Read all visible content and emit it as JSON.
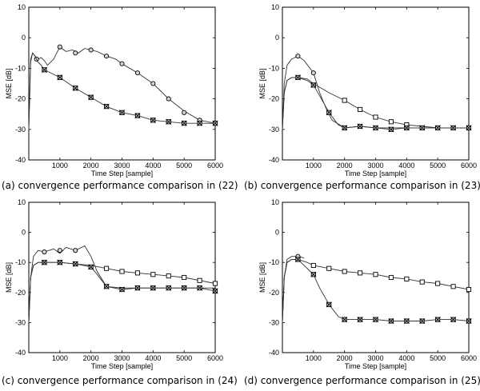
{
  "chart_data": [
    {
      "type": "line",
      "caption": "(a) convergence performance comparison in (22)",
      "xlabel": "Time Step [sample]",
      "ylabel": "MSE [dB]",
      "xlim": [
        0,
        6000
      ],
      "ylim": [
        -40,
        10
      ],
      "xticks": [
        "1000",
        "2000",
        "3000",
        "4000",
        "5000",
        "6000"
      ],
      "yticks": [
        "10",
        "0",
        "-10",
        "-20",
        "-30",
        "-40"
      ],
      "series": [
        {
          "name": "circle",
          "marker": "circle",
          "x": [
            0,
            60,
            120,
            200,
            300,
            400,
            500,
            600,
            700,
            800,
            900,
            1000,
            1200,
            1400,
            1600,
            1800,
            2000,
            2200,
            2500,
            2800,
            3000,
            3500,
            4000,
            4500,
            5000,
            5500,
            6000
          ],
          "y": [
            -30,
            -8,
            -5,
            -6,
            -7,
            -6.5,
            -7.5,
            -9,
            -8,
            -7,
            -5,
            -3,
            -4.5,
            -4,
            -5,
            -3.5,
            -4,
            -4.5,
            -6,
            -7,
            -8.5,
            -11.5,
            -15,
            -20,
            -24,
            -27,
            -28
          ],
          "marker_x": [
            250,
            1000,
            1500,
            2000,
            2500,
            3000,
            3500,
            4000,
            4500,
            5000,
            5500,
            6000
          ],
          "marker_y": [
            -7,
            -3,
            -5,
            -4,
            -6,
            -8.5,
            -11.5,
            -15,
            -20,
            -24.5,
            -27,
            -28
          ]
        },
        {
          "name": "x-square",
          "marker": "xsquare",
          "x": [
            0,
            60,
            120,
            200,
            300,
            400,
            500,
            800,
            1000,
            1500,
            2000,
            2500,
            3000,
            3500,
            4000,
            4500,
            5000,
            5500,
            6000
          ],
          "y": [
            -30,
            -7,
            -5,
            -6,
            -8,
            -9,
            -10.5,
            -12,
            -13,
            -16.5,
            -19.5,
            -22.5,
            -24.5,
            -25.5,
            -27,
            -27.5,
            -28,
            -28,
            -28
          ],
          "marker_x": [
            500,
            1000,
            1500,
            2000,
            2500,
            3000,
            3500,
            4000,
            4500,
            5000,
            5500,
            6000
          ],
          "marker_y": [
            -10.5,
            -13,
            -16.5,
            -19.5,
            -22.5,
            -24.5,
            -25.5,
            -27,
            -27.5,
            -28,
            -28,
            -28
          ]
        }
      ]
    },
    {
      "type": "line",
      "caption": "(b) convergence performance comparison in (23)",
      "xlabel": "Time Step [sample]",
      "ylabel": "MSE [dB]",
      "xlim": [
        0,
        6000
      ],
      "ylim": [
        -40,
        10
      ],
      "xticks": [
        "1000",
        "2000",
        "3000",
        "4000",
        "5000",
        "6000"
      ],
      "yticks": [
        "10",
        "0",
        "-10",
        "-20",
        "-30",
        "-40"
      ],
      "series": [
        {
          "name": "circle",
          "marker": "circle",
          "x": [
            0,
            60,
            150,
            300,
            500,
            700,
            1000,
            1200,
            1400,
            1600,
            2000,
            2500,
            3000,
            3500,
            4000,
            4500,
            5000,
            5500,
            6000
          ],
          "y": [
            -30,
            -15,
            -9,
            -7,
            -6,
            -7.5,
            -11.5,
            -18,
            -23,
            -27,
            -29.5,
            -29,
            -29.5,
            -29.5,
            -29.5,
            -29.5,
            -29.5,
            -29.5,
            -29.5
          ],
          "marker_x": [
            500,
            1000
          ],
          "marker_y": [
            -6,
            -11.5
          ]
        },
        {
          "name": "square",
          "marker": "square",
          "x": [
            0,
            60,
            150,
            300,
            500,
            800,
            1000,
            1500,
            2000,
            2500,
            3000,
            3500,
            4000,
            4500,
            5000,
            5500,
            6000
          ],
          "y": [
            -30,
            -18,
            -14,
            -13,
            -13,
            -13.5,
            -15,
            -18,
            -20.5,
            -23.5,
            -26,
            -27.5,
            -28.5,
            -29,
            -29.5,
            -29.5,
            -29.5
          ],
          "marker_x": [
            2000,
            2500,
            3000,
            3500,
            4000
          ],
          "marker_y": [
            -20.5,
            -23.5,
            -26,
            -27.5,
            -28.5
          ]
        },
        {
          "name": "x-square",
          "marker": "xsquare",
          "x": [
            0,
            60,
            150,
            300,
            500,
            800,
            1000,
            1200,
            1500,
            1800,
            2000,
            2500,
            3000,
            3500,
            4000,
            4500,
            5000,
            5500,
            6000
          ],
          "y": [
            -30,
            -18,
            -14,
            -13,
            -13,
            -14,
            -15.5,
            -19,
            -24.5,
            -28.5,
            -29.5,
            -29,
            -29.5,
            -30,
            -29.5,
            -29.5,
            -29.5,
            -29.5,
            -29.5
          ],
          "marker_x": [
            500,
            1000,
            1500,
            2000,
            2500,
            3000,
            3500,
            4000,
            4500,
            5000,
            5500,
            6000
          ],
          "marker_y": [
            -13,
            -15.5,
            -24.5,
            -29.5,
            -29,
            -29.5,
            -30,
            -29.5,
            -29.5,
            -29.5,
            -29.5,
            -29.5
          ]
        }
      ]
    },
    {
      "type": "line",
      "caption": "(c) convergence performance comparison in (24)",
      "xlabel": "Time Step [sample]",
      "ylabel": "MSE [dB]",
      "xlim": [
        0,
        6000
      ],
      "ylim": [
        -40,
        10
      ],
      "xticks": [
        "1000",
        "2000",
        "3000",
        "4000",
        "5000",
        "6000"
      ],
      "yticks": [
        "10",
        "0",
        "-10",
        "-20",
        "-30",
        "-40"
      ],
      "series": [
        {
          "name": "circle",
          "marker": "circle",
          "x": [
            0,
            60,
            150,
            300,
            500,
            800,
            1000,
            1200,
            1500,
            1800,
            2000,
            2200,
            2500,
            3000,
            4000,
            5000,
            6000
          ],
          "y": [
            -30,
            -15,
            -8,
            -6,
            -6.5,
            -5.5,
            -7,
            -5,
            -6,
            -4.5,
            -8,
            -13,
            -18,
            -18.5,
            -18.5,
            -18.5,
            -18.5
          ],
          "marker_x": [
            500,
            1000,
            1500
          ],
          "marker_y": [
            -6.5,
            -6,
            -6
          ]
        },
        {
          "name": "square",
          "marker": "square",
          "x": [
            0,
            60,
            150,
            300,
            500,
            1000,
            1500,
            2000,
            2500,
            3000,
            3500,
            4000,
            4500,
            5000,
            5500,
            6000
          ],
          "y": [
            -30,
            -15,
            -11,
            -10,
            -10,
            -10,
            -10.5,
            -11,
            -12,
            -13,
            -13.5,
            -14,
            -14.5,
            -15,
            -16,
            -17
          ],
          "marker_x": [
            2500,
            3000,
            3500,
            4000,
            4500,
            5000,
            5500,
            6000
          ],
          "marker_y": [
            -12,
            -13,
            -13.5,
            -14,
            -14.5,
            -15,
            -16,
            -17
          ]
        },
        {
          "name": "x-square",
          "marker": "xsquare",
          "x": [
            0,
            60,
            150,
            300,
            500,
            1000,
            1500,
            2000,
            2200,
            2500,
            3000,
            3500,
            4000,
            4500,
            5000,
            5500,
            6000
          ],
          "y": [
            -30,
            -15,
            -11,
            -10,
            -10,
            -10,
            -10.5,
            -11.5,
            -14,
            -18,
            -19,
            -18.5,
            -18.5,
            -18.5,
            -18.5,
            -18.5,
            -19.5
          ],
          "marker_x": [
            500,
            1000,
            1500,
            2000,
            2500,
            3000,
            3500,
            4000,
            4500,
            5000,
            5500,
            6000
          ],
          "marker_y": [
            -10,
            -10,
            -10.5,
            -11.5,
            -18,
            -19,
            -18.5,
            -18.5,
            -18.5,
            -18.5,
            -18.5,
            -19.5
          ]
        }
      ]
    },
    {
      "type": "line",
      "caption": "(d) convergence performance comparison in (25)",
      "xlabel": "Time Step [sample]",
      "ylabel": "MSE [dB]",
      "xlim": [
        0,
        6000
      ],
      "ylim": [
        -40,
        10
      ],
      "xticks": [
        "1000",
        "2000",
        "3000",
        "4000",
        "5000",
        "6000"
      ],
      "yticks": [
        "10",
        "0",
        "-10",
        "-20",
        "-30",
        "-40"
      ],
      "series": [
        {
          "name": "circle",
          "marker": "circle",
          "x": [
            0,
            60,
            150,
            300,
            500,
            700
          ],
          "y": [
            -30,
            -15,
            -9,
            -8,
            -8,
            -8.5
          ],
          "marker_x": [
            500
          ],
          "marker_y": [
            -8
          ]
        },
        {
          "name": "square",
          "marker": "square",
          "x": [
            0,
            60,
            150,
            300,
            500,
            800,
            1000,
            1500,
            2000,
            2500,
            3000,
            3500,
            4000,
            4500,
            5000,
            5500,
            6000
          ],
          "y": [
            -30,
            -15,
            -10,
            -9,
            -9,
            -10,
            -11,
            -12,
            -13,
            -13.5,
            -14,
            -15,
            -15.5,
            -16.5,
            -17,
            -18,
            -19
          ],
          "marker_x": [
            1000,
            1500,
            2000,
            2500,
            3000,
            3500,
            4000,
            4500,
            5000,
            5500,
            6000
          ],
          "marker_y": [
            -11,
            -12,
            -13,
            -13.5,
            -14,
            -15,
            -15.5,
            -16.5,
            -17,
            -18,
            -19
          ]
        },
        {
          "name": "x-square",
          "marker": "xsquare",
          "x": [
            0,
            60,
            150,
            300,
            500,
            700,
            1000,
            1200,
            1500,
            1800,
            2000,
            2500,
            3000,
            3500,
            4000,
            4500,
            5000,
            5500,
            6000
          ],
          "y": [
            -30,
            -15,
            -10,
            -9,
            -9,
            -11,
            -14,
            -18.5,
            -24,
            -28,
            -29,
            -29,
            -29,
            -29.5,
            -29.5,
            -29.5,
            -29,
            -29,
            -29.5
          ],
          "marker_x": [
            500,
            1000,
            1500,
            2000,
            2500,
            3000,
            3500,
            4000,
            4500,
            5000,
            5500,
            6000
          ],
          "marker_y": [
            -9,
            -14,
            -24,
            -29,
            -29,
            -29,
            -29.5,
            -29.5,
            -29.5,
            -29,
            -29,
            -29.5
          ]
        }
      ]
    }
  ]
}
